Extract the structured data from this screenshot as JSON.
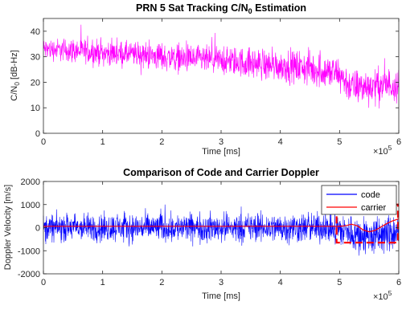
{
  "chart_data": [
    {
      "type": "line",
      "title_main": "PRN 5 Sat Tracking C/N",
      "title_sub": "0",
      "title_tail": " Estimation",
      "xlabel": "Time [ms]",
      "ylabel_main": "C/N",
      "ylabel_sub": "0",
      "ylabel_tail": " [dB-Hz]",
      "xlim": [
        0,
        600000
      ],
      "ylim": [
        0,
        45
      ],
      "xticks": [
        0,
        100000,
        200000,
        300000,
        400000,
        500000,
        600000
      ],
      "xtick_labels": [
        "0",
        "1",
        "2",
        "3",
        "4",
        "5",
        "6"
      ],
      "yticks": [
        0,
        10,
        20,
        30,
        40
      ],
      "ytick_labels": [
        "0",
        "10",
        "20",
        "30",
        "40"
      ],
      "x_exponent_base": "×10",
      "x_exponent_power": "5",
      "series": [
        {
          "color": "#ff00ff",
          "envelope_x": [
            0,
            50000,
            100000,
            150000,
            200000,
            250000,
            300000,
            350000,
            400000,
            450000,
            500000,
            520000,
            560000,
            600000
          ],
          "mean": [
            33,
            32.5,
            31.5,
            31,
            30,
            29,
            28.5,
            27.5,
            26.5,
            25.5,
            23,
            18,
            18.5,
            19.5
          ],
          "spread": [
            6,
            7,
            7,
            7,
            8,
            8,
            8,
            9,
            9,
            10,
            10,
            10,
            10,
            10
          ]
        }
      ]
    },
    {
      "type": "line",
      "title": "Comparison of Code and Carrier Doppler",
      "xlabel": "Time [ms]",
      "ylabel": "Doppler Velocity [m/s]",
      "xlim": [
        0,
        600000
      ],
      "ylim": [
        -2000,
        2000
      ],
      "xticks": [
        0,
        100000,
        200000,
        300000,
        400000,
        500000,
        600000
      ],
      "xtick_labels": [
        "0",
        "1",
        "2",
        "3",
        "4",
        "5",
        "6"
      ],
      "yticks": [
        -2000,
        -1000,
        0,
        1000,
        2000
      ],
      "ytick_labels": [
        "-2000",
        "-1000",
        "0",
        "1000",
        "2000"
      ],
      "x_exponent_base": "×10",
      "x_exponent_power": "5",
      "legend": {
        "position": "top-right"
      },
      "series": [
        {
          "name": "code",
          "color": "#0000ff",
          "envelope_x": [
            0,
            100000,
            200000,
            300000,
            400000,
            480000,
            500000,
            530000,
            560000,
            600000
          ],
          "mean": [
            0,
            0,
            0,
            0,
            0,
            0,
            -100,
            -300,
            -400,
            -200
          ],
          "spread": [
            850,
            880,
            900,
            900,
            920,
            950,
            1050,
            1150,
            1200,
            1150
          ]
        },
        {
          "name": "carrier",
          "color": "#ff0000",
          "x": [
            0,
            100000,
            200000,
            300000,
            400000,
            480000,
            500000,
            510000,
            520000,
            530000,
            540000,
            550000,
            560000,
            570000,
            580000,
            590000,
            600000
          ],
          "y": [
            60,
            60,
            60,
            60,
            60,
            60,
            55,
            80,
            150,
            80,
            -100,
            -180,
            -120,
            30,
            180,
            300,
            380
          ]
        }
      ],
      "annotation": {
        "type": "dashed-rectangle",
        "color": "#ff0000",
        "x_range": [
          495000,
          600000
        ],
        "y_range": [
          -650,
          1000
        ]
      }
    }
  ]
}
